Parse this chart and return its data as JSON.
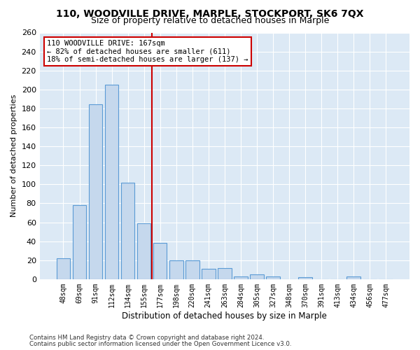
{
  "title": "110, WOODVILLE DRIVE, MARPLE, STOCKPORT, SK6 7QX",
  "subtitle": "Size of property relative to detached houses in Marple",
  "xlabel": "Distribution of detached houses by size in Marple",
  "ylabel": "Number of detached properties",
  "bar_labels": [
    "48sqm",
    "69sqm",
    "91sqm",
    "112sqm",
    "134sqm",
    "155sqm",
    "177sqm",
    "198sqm",
    "220sqm",
    "241sqm",
    "263sqm",
    "284sqm",
    "305sqm",
    "327sqm",
    "348sqm",
    "370sqm",
    "391sqm",
    "413sqm",
    "434sqm",
    "456sqm",
    "477sqm"
  ],
  "bar_values": [
    22,
    78,
    184,
    205,
    102,
    59,
    38,
    20,
    20,
    11,
    12,
    3,
    5,
    3,
    0,
    2,
    0,
    0,
    3,
    0,
    0
  ],
  "bar_color": "#c5d8ed",
  "bar_edge_color": "#5b9bd5",
  "vline_x": 6.0,
  "vline_color": "#cc0000",
  "annotation_text": "110 WOODVILLE DRIVE: 167sqm\n← 82% of detached houses are smaller (611)\n18% of semi-detached houses are larger (137) →",
  "annotation_box_color": "#ffffff",
  "annotation_box_edge_color": "#cc0000",
  "ylim": [
    0,
    260
  ],
  "yticks": [
    0,
    20,
    40,
    60,
    80,
    100,
    120,
    140,
    160,
    180,
    200,
    220,
    240,
    260
  ],
  "footer1": "Contains HM Land Registry data © Crown copyright and database right 2024.",
  "footer2": "Contains public sector information licensed under the Open Government Licence v3.0.",
  "bg_color": "#dce9f5",
  "title_fontsize": 10,
  "subtitle_fontsize": 9
}
